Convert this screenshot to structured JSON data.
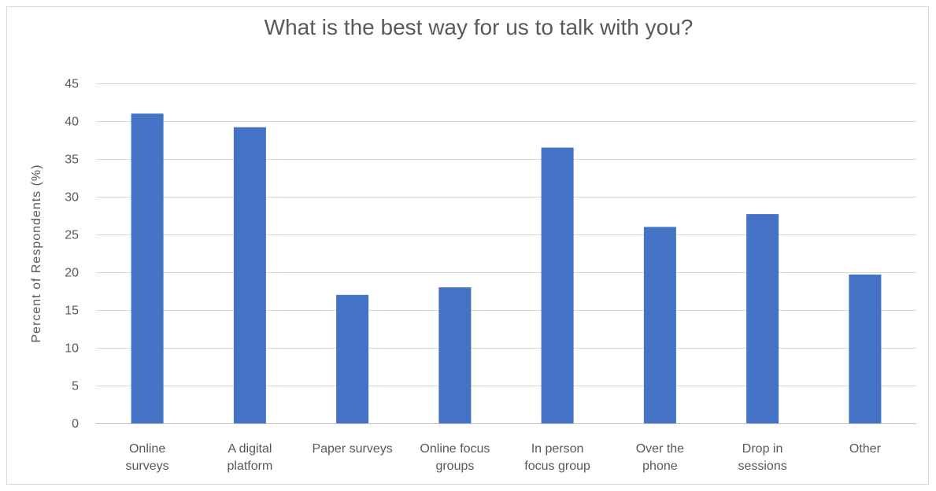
{
  "chart_data": {
    "type": "bar",
    "title": "What is the best way for us to talk with you?",
    "xlabel": "",
    "ylabel": "Percent of Respondents (%)",
    "ylim": [
      0,
      45
    ],
    "yticks": [
      0,
      5,
      10,
      15,
      20,
      25,
      30,
      35,
      40,
      45
    ],
    "grid": true,
    "legend": "none",
    "categories": [
      [
        "Online",
        "surveys"
      ],
      [
        "A digital",
        "platform"
      ],
      [
        "Paper surveys"
      ],
      [
        "Online focus",
        "groups"
      ],
      [
        "In person",
        "focus group"
      ],
      [
        "Over the",
        "phone"
      ],
      [
        "Drop in",
        "sessions"
      ],
      [
        "Other"
      ]
    ],
    "values": [
      41,
      39.2,
      17,
      18,
      36.5,
      26,
      27.7,
      19.7
    ],
    "bar_color": "#4472c4"
  }
}
